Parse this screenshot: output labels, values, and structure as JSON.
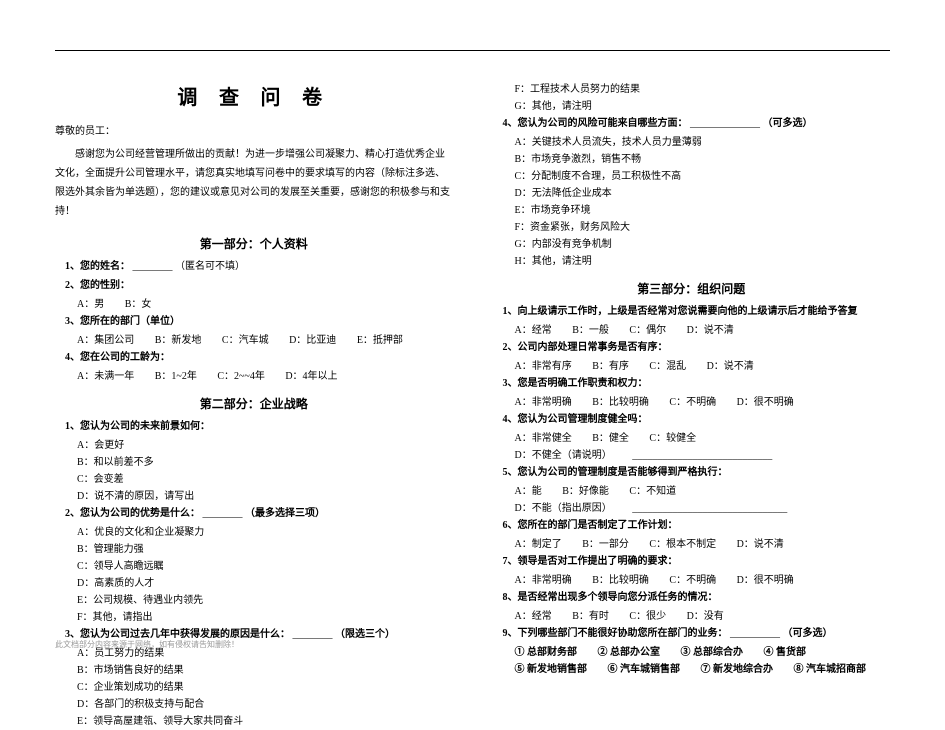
{
  "title": "调 查 问 卷",
  "greeting": "尊敬的员工：",
  "intro": "感谢您为公司经营管理所做出的贡献！为进一步增强公司凝聚力、精心打造优秀企业文化，全面提升公司管理水平，请您真实地填写问卷中的要求填写的内容（除标注多选、限选外其余皆为单选题），您的建议或意见对公司的发展至关重要，感谢您的积极参与和支持！",
  "footer": "此文档部分内容来源于网络，如有侵权请告知删除！",
  "section1": {
    "title": "第一部分：个人资料",
    "q1_label": "1、您的姓名：",
    "q1_note": "（匿名可不填）",
    "q2_label": "2、您的性别：",
    "q2_opts": {
      "a": "A：男",
      "b": "B：女"
    },
    "q3_label": "3、您所在的部门（单位）",
    "q3_opts": {
      "a": "A：集团公司",
      "b": "B：新发地",
      "c": "C：汽车城",
      "d": "D：比亚迪",
      "e": "E：抵押部"
    },
    "q4_label": "4、您在公司的工龄为：",
    "q4_opts": {
      "a": "A：未满一年",
      "b": "B：1~2年",
      "c": "C：2~~4年",
      "d": "D：4年以上"
    }
  },
  "section2": {
    "title": "第二部分：企业战略",
    "q1_label": "1、您认为公司的未来前景如何：",
    "q1_opts": {
      "a": "A：会更好",
      "b": "B：和以前差不多",
      "c": "C：会变差",
      "d": "D：说不清的原因，请写出"
    },
    "q2_label": "2、您认为公司的优势是什么：",
    "q2_note": "（最多选择三项）",
    "q2_opts": {
      "a": "A：优良的文化和企业凝聚力",
      "b": "B：管理能力强",
      "c": "C：领导人高瞻远瞩",
      "d": "D：高素质的人才",
      "e": "E：公司规模、待遇业内领先",
      "f": "F：其他，请指出"
    },
    "q3_label": "3、您认为公司过去几年中获得发展的原因是什么：",
    "q3_note": "（限选三个）",
    "q3_opts": {
      "a": "A：员工努力的结果",
      "b": "B：市场销售良好的结果",
      "c": "C：企业策划成功的结果",
      "d": "D：各部门的积极支持与配合",
      "e": "E：领导高屋建瓴、领导大家共同奋斗",
      "f": "F：工程技术人员努力的结果",
      "g": "G：其他，请注明"
    },
    "q4_label": "4、您认为公司的风险可能来自哪些方面：",
    "q4_note": "（可多选）",
    "q4_opts": {
      "a": "A：关键技术人员流失，技术人员力量薄弱",
      "b": "B：市场竞争激烈，销售不畅",
      "c": "C：分配制度不合理，员工积极性不高",
      "d": "D：无法降低企业成本",
      "e": "E：市场竞争环境",
      "f": "F：资金紧张，财务风险大",
      "g": "G：内部没有竞争机制",
      "h": "H：其他，请注明"
    }
  },
  "section3": {
    "title": "第三部分：组织问题",
    "q1_label": "1、向上级请示工作时，上级是否经常对您说需要向他的上级请示后才能给予答复",
    "q1_opts": {
      "a": "A：经常",
      "b": "B：一般",
      "c": "C：偶尔",
      "d": "D：说不清"
    },
    "q2_label": "2、公司内部处理日常事务是否有序：",
    "q2_opts": {
      "a": "A：非常有序",
      "b": "B：有序",
      "c": "C：混乱",
      "d": "D：说不清"
    },
    "q3_label": "3、您是否明确工作职责和权力：",
    "q3_opts": {
      "a": "A：非常明确",
      "b": "B：比较明确",
      "c": "C：不明确",
      "d": "D：很不明确"
    },
    "q4_label": "4、您认为公司管理制度健全吗：",
    "q4_opts": {
      "a": "A：非常健全",
      "b": "B：健全",
      "c": "C：较健全",
      "d": "D：不健全（请说明）"
    },
    "q5_label": "5、您认为公司的管理制度是否能够得到严格执行：",
    "q5_opts": {
      "a": "A：能",
      "b": "B：好像能",
      "c": "C：不知道",
      "d": "D：不能（指出原因）"
    },
    "q6_label": "6、您所在的部门是否制定了工作计划：",
    "q6_opts": {
      "a": "A：制定了",
      "b": "B：一部分",
      "c": "C：根本不制定",
      "d": "D：说不清"
    },
    "q7_label": "7、领导是否对工作提出了明确的要求：",
    "q7_opts": {
      "a": "A：非常明确",
      "b": "B：比较明确",
      "c": "C：不明确",
      "d": "D：很不明确"
    },
    "q8_label": "8、是否经常出现多个领导向您分派任务的情况：",
    "q8_opts": {
      "a": "A：经常",
      "b": "B：有时",
      "c": "C：很少",
      "d": "D：没有"
    },
    "q9_label": "9、下列哪些部门不能很好协助您所在部门的业务：",
    "q9_note": "（可多选）",
    "q9_opts": {
      "a": "① 总部财务部",
      "b": "② 总部办公室",
      "c": "③ 总部综合办",
      "d": "④ 售货部",
      "e": "⑤ 新发地销售部",
      "f": "⑥ 汽车城销售部",
      "g": "⑦ 新发地综合办",
      "h": "⑧ 汽车城招商部"
    }
  }
}
